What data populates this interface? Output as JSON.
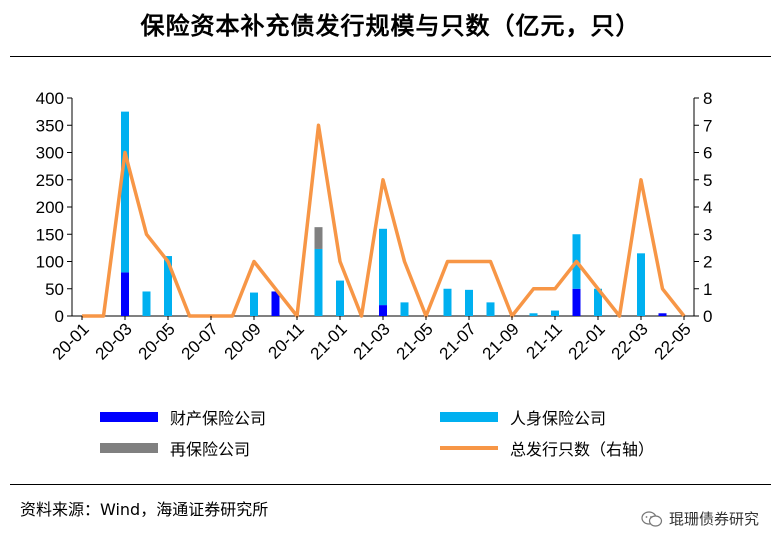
{
  "title": "保险资本补充债发行规模与只数（亿元，只）",
  "source": "资料来源：Wind，海通证券研究所",
  "watermark": "琨珊债券研究",
  "colors": {
    "property": "#0000FF",
    "life": "#00B0F0",
    "reinsurance": "#808080",
    "total": "#F79646"
  },
  "chart_data": {
    "type": "bar",
    "stacked": true,
    "title": "保险资本补充债发行规模与只数（亿元，只）",
    "categories": [
      "20-01",
      "20-02",
      "20-03",
      "20-04",
      "20-05",
      "20-06",
      "20-07",
      "20-08",
      "20-09",
      "20-10",
      "20-11",
      "20-12",
      "21-01",
      "21-02",
      "21-03",
      "21-04",
      "21-05",
      "21-06",
      "21-07",
      "21-08",
      "21-09",
      "21-10",
      "21-11",
      "21-12",
      "22-01",
      "22-02",
      "22-03",
      "22-04",
      "22-05"
    ],
    "x_tick_labels": [
      "20-01",
      "20-03",
      "20-05",
      "20-07",
      "20-09",
      "20-11",
      "21-01",
      "21-03",
      "21-05",
      "21-07",
      "21-09",
      "21-11",
      "22-01",
      "22-03",
      "22-05"
    ],
    "ylim_left": [
      0,
      400
    ],
    "yticks_left": [
      0,
      50,
      100,
      150,
      200,
      250,
      300,
      350,
      400
    ],
    "ylim_right": [
      0,
      8
    ],
    "yticks_right": [
      0,
      1,
      2,
      3,
      4,
      5,
      6,
      7,
      8
    ],
    "series": [
      {
        "name": "财产保险公司",
        "type": "bar",
        "axis": "left",
        "values": [
          0,
          0,
          80,
          0,
          0,
          0,
          0,
          0,
          0,
          45,
          0,
          0,
          0,
          0,
          20,
          0,
          0,
          0,
          0,
          0,
          0,
          0,
          0,
          50,
          0,
          0,
          0,
          5,
          0
        ]
      },
      {
        "name": "人身保险公司",
        "type": "bar",
        "axis": "left",
        "values": [
          0,
          0,
          295,
          45,
          110,
          0,
          0,
          0,
          43,
          0,
          0,
          123,
          65,
          0,
          140,
          25,
          0,
          50,
          48,
          25,
          0,
          5,
          10,
          100,
          50,
          0,
          115,
          0,
          0
        ]
      },
      {
        "name": "再保险公司",
        "type": "bar",
        "axis": "left",
        "values": [
          0,
          0,
          0,
          0,
          0,
          0,
          0,
          0,
          0,
          0,
          0,
          40,
          0,
          0,
          0,
          0,
          0,
          0,
          0,
          0,
          0,
          0,
          0,
          0,
          0,
          0,
          0,
          0,
          0
        ]
      },
      {
        "name": "总发行只数（右轴）",
        "type": "line",
        "axis": "right",
        "values": [
          0,
          0,
          6,
          3,
          2,
          0,
          0,
          0,
          2,
          1,
          0,
          7,
          2,
          0,
          5,
          2,
          0,
          2,
          2,
          2,
          0,
          1,
          1,
          2,
          1,
          0,
          5,
          1,
          0
        ]
      }
    ],
    "legend": "bottom"
  }
}
